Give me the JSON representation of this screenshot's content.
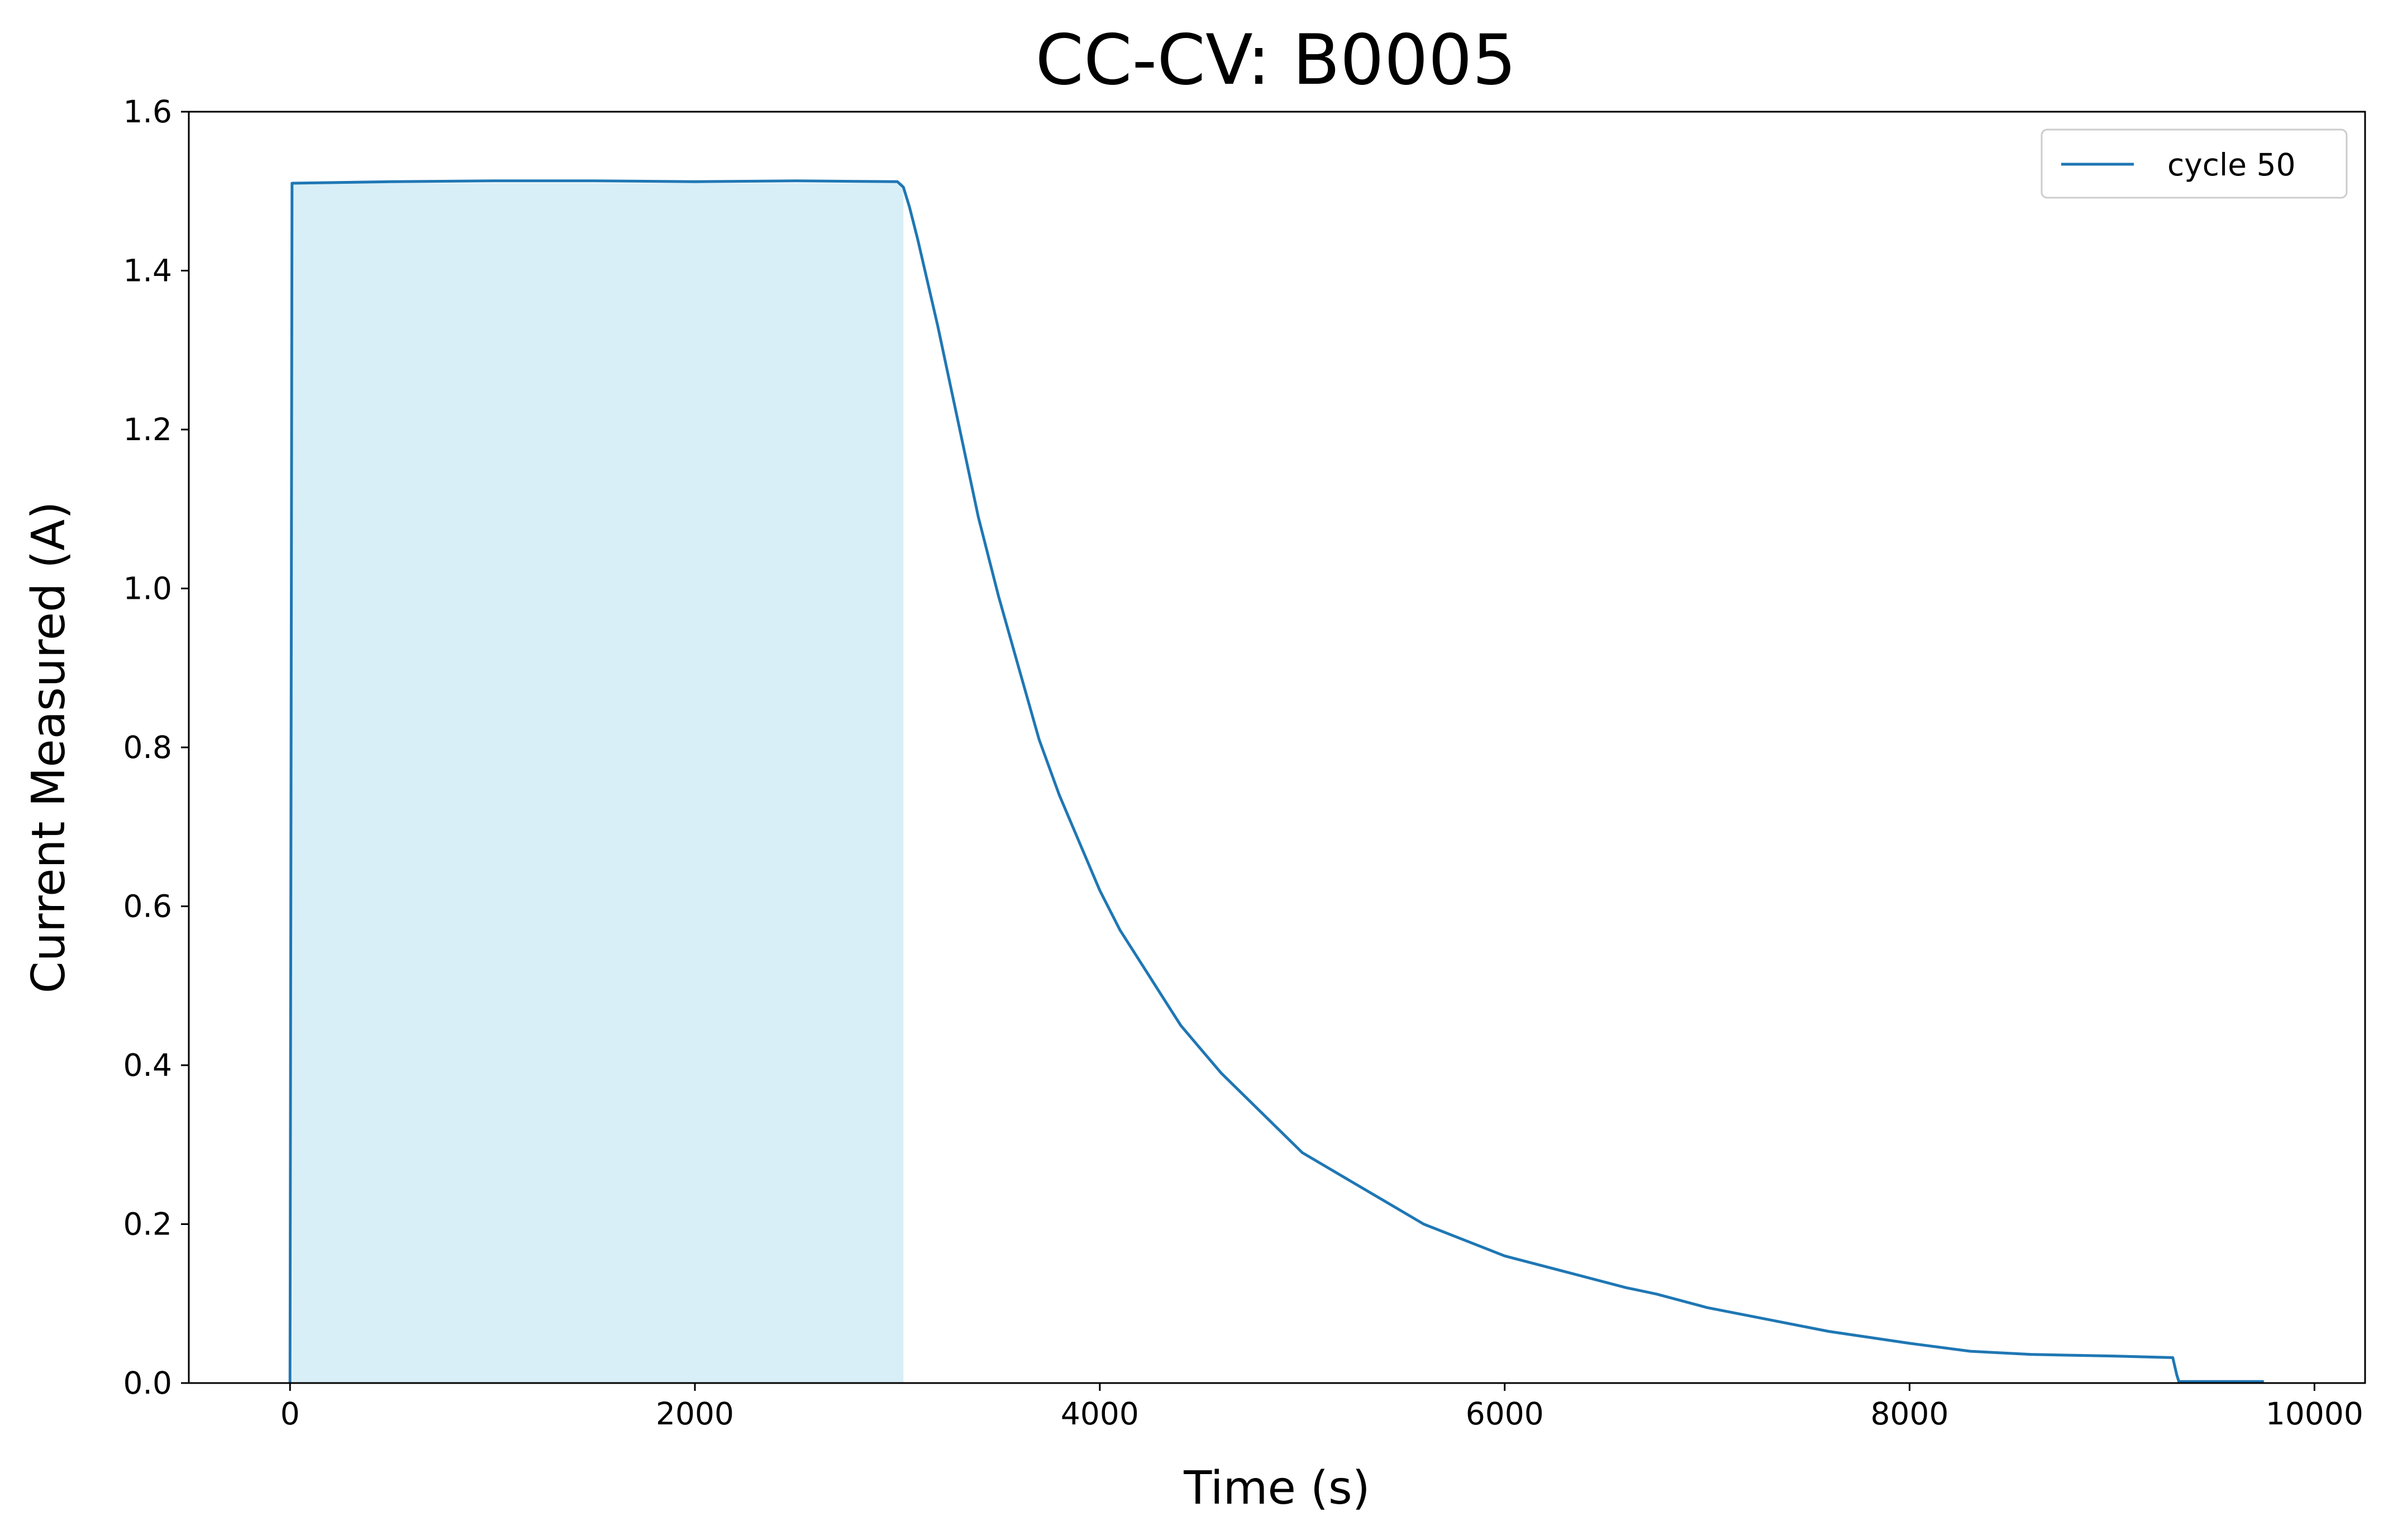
{
  "chart_data": {
    "type": "line",
    "title": "CC-CV: B0005",
    "xlabel": "Time (s)",
    "ylabel": "Current Measured (A)",
    "xlim": [
      -500,
      10250
    ],
    "ylim": [
      0.0,
      1.6
    ],
    "xticks": [
      0,
      2000,
      4000,
      6000,
      8000,
      10000
    ],
    "xtick_labels": [
      "0",
      "2000",
      "4000",
      "6000",
      "8000",
      "10000"
    ],
    "yticks": [
      0.0,
      0.2,
      0.4,
      0.6,
      0.8,
      1.0,
      1.2,
      1.4,
      1.6
    ],
    "ytick_labels": [
      "0.0",
      "0.2",
      "0.4",
      "0.6",
      "0.8",
      "1.0",
      "1.2",
      "1.4",
      "1.6"
    ],
    "grid": false,
    "legend": {
      "position": "top-right",
      "entries": [
        "cycle 50"
      ]
    },
    "series": [
      {
        "name": "cycle 50",
        "color": "#1f77b4",
        "x": [
          0,
          10,
          500,
          1000,
          1500,
          2000,
          2500,
          3000,
          3030,
          3060,
          3100,
          3200,
          3300,
          3400,
          3500,
          3600,
          3700,
          3800,
          3900,
          4000,
          4100,
          4200,
          4300,
          4400,
          4500,
          4600,
          4700,
          4800,
          4900,
          5000,
          5200,
          5400,
          5600,
          5800,
          6000,
          6300,
          6600,
          6750,
          7000,
          7300,
          7600,
          8000,
          8300,
          8600,
          9000,
          9300,
          9320,
          9330,
          9500,
          9750
        ],
        "y": [
          0.0,
          1.51,
          1.512,
          1.513,
          1.513,
          1.512,
          1.513,
          1.512,
          1.505,
          1.48,
          1.44,
          1.33,
          1.21,
          1.09,
          0.99,
          0.9,
          0.81,
          0.74,
          0.68,
          0.62,
          0.57,
          0.53,
          0.49,
          0.45,
          0.42,
          0.39,
          0.365,
          0.34,
          0.315,
          0.29,
          0.26,
          0.23,
          0.2,
          0.18,
          0.16,
          0.14,
          0.12,
          0.112,
          0.095,
          0.08,
          0.065,
          0.05,
          0.04,
          0.036,
          0.034,
          0.032,
          0.01,
          0.002,
          0.002,
          0.002
        ]
      }
    ],
    "shaded_region": {
      "x_start": 10,
      "x_end": 3030,
      "y": 1.51,
      "color": "#d9eff7"
    }
  }
}
